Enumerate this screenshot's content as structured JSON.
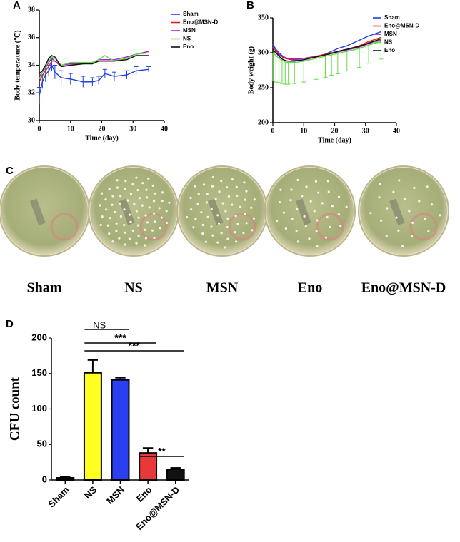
{
  "chart_data": [
    {
      "type": "line",
      "panel_label": "A",
      "xlabel": "Time (day)",
      "ylabel": "Body temperature (℃)",
      "x": [
        0,
        1,
        2,
        3,
        4,
        5,
        7,
        10,
        14,
        17,
        19,
        21,
        24,
        28,
        31,
        35
      ],
      "xlim": [
        0,
        40
      ],
      "xticks": [
        0,
        10,
        20,
        30,
        40
      ],
      "ylim": [
        30,
        38
      ],
      "yticks": [
        30,
        32,
        34,
        36,
        38
      ],
      "series": [
        {
          "name": "Sham",
          "color": "#1f3fe0",
          "values": [
            31.8,
            32.8,
            33.3,
            33.6,
            34.0,
            33.5,
            33.1,
            33.0,
            32.8,
            32.8,
            32.9,
            33.4,
            33.2,
            33.3,
            33.6,
            33.7
          ],
          "error": [
            0.6,
            0.5,
            0.5,
            0.4,
            0.4,
            0.5,
            0.5,
            0.4,
            0.4,
            0.3,
            0.3,
            0.3,
            0.3,
            0.3,
            0.3,
            0.2
          ]
        },
        {
          "name": "Eno@MSN-D",
          "color": "#e0201c",
          "values": [
            32.8,
            33.3,
            33.6,
            33.9,
            34.3,
            34.3,
            33.9,
            34.0,
            34.1,
            34.2,
            34.3,
            34.3,
            34.3,
            34.5,
            34.8,
            34.9
          ]
        },
        {
          "name": "MSN",
          "color": "#a020d0",
          "values": [
            33.2,
            33.5,
            33.8,
            34.2,
            34.5,
            34.3,
            34.0,
            34.1,
            34.1,
            34.2,
            34.4,
            34.4,
            34.4,
            34.6,
            34.8,
            35.0
          ]
        },
        {
          "name": "NS",
          "color": "#60e040",
          "values": [
            33.0,
            33.5,
            33.9,
            34.3,
            34.6,
            34.5,
            34.0,
            34.2,
            34.2,
            34.2,
            34.4,
            34.7,
            34.3,
            34.5,
            34.8,
            34.9
          ]
        },
        {
          "name": "Eno",
          "color": "#111111",
          "values": [
            33.4,
            33.6,
            34.0,
            34.5,
            34.7,
            34.6,
            33.9,
            34.0,
            34.1,
            34.1,
            34.3,
            34.3,
            34.3,
            34.4,
            34.7,
            34.7
          ]
        }
      ]
    },
    {
      "type": "line",
      "panel_label": "B",
      "xlabel": "Time (day)",
      "ylabel": "Body weight (g)",
      "x": [
        0,
        1,
        2,
        3,
        4,
        5,
        7,
        10,
        14,
        17,
        19,
        21,
        24,
        28,
        31,
        35
      ],
      "xlim": [
        0,
        40
      ],
      "xticks": [
        0,
        10,
        20,
        30,
        40
      ],
      "ylim": [
        200,
        350
      ],
      "yticks": [
        200,
        250,
        300,
        350
      ],
      "series": [
        {
          "name": "Sham",
          "color": "#1f3fe0",
          "values": [
            312,
            305,
            300,
            296,
            293,
            291,
            289,
            290,
            294,
            298,
            302,
            306,
            310,
            318,
            324,
            330
          ]
        },
        {
          "name": "Eno@MSN-D",
          "color": "#e0201c",
          "values": [
            308,
            303,
            298,
            294,
            292,
            291,
            290,
            292,
            295,
            298,
            300,
            302,
            305,
            310,
            316,
            322
          ]
        },
        {
          "name": "MSN",
          "color": "#a020d0",
          "values": [
            303,
            300,
            297,
            295,
            293,
            292,
            291,
            292,
            294,
            297,
            299,
            301,
            304,
            308,
            313,
            318
          ]
        },
        {
          "name": "NS",
          "color": "#60e040",
          "values": [
            300,
            296,
            292,
            289,
            287,
            286,
            286,
            288,
            292,
            295,
            297,
            299,
            302,
            306,
            311,
            316
          ],
          "error": [
            40,
            38,
            35,
            33,
            32,
            31,
            30,
            30,
            30,
            30,
            29,
            29,
            28,
            27,
            26,
            25
          ]
        },
        {
          "name": "Eno",
          "color": "#111111",
          "values": [
            305,
            300,
            295,
            291,
            289,
            288,
            288,
            290,
            294,
            297,
            299,
            302,
            305,
            309,
            314,
            320
          ]
        }
      ]
    },
    {
      "type": "bar",
      "panel_label": "D",
      "ylabel": "CFU count",
      "categories": [
        "Sham",
        "NS",
        "MSN",
        "Eno",
        "Eno@MSN-D"
      ],
      "values": [
        3,
        151,
        141,
        38,
        15
      ],
      "error": [
        2,
        18,
        3,
        7,
        2
      ],
      "colors": [
        "#111111",
        "#ffff22",
        "#2a3ff0",
        "#e8383a",
        "#111111"
      ],
      "ylim": [
        0,
        200
      ],
      "yticks": [
        0,
        50,
        100,
        150,
        200
      ],
      "annotations": [
        "NS",
        "***",
        "***",
        "**"
      ]
    }
  ],
  "panel_c": {
    "label": "C",
    "plates": [
      "Sham",
      "NS",
      "MSN",
      "Eno",
      "Eno@MSN-D"
    ]
  }
}
